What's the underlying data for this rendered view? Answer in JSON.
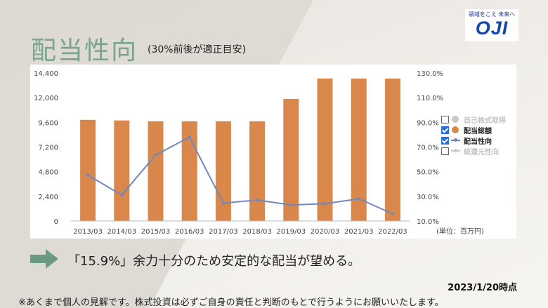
{
  "header": {
    "title": "配当性向",
    "subtitle": "(30%前後が適正目安)"
  },
  "logo": {
    "tagline": "領域をこえ 未来へ",
    "text": "OJI"
  },
  "chart_data": {
    "type": "bar",
    "categories": [
      "2013/03",
      "2014/03",
      "2015/03",
      "2016/03",
      "2017/03",
      "2018/03",
      "2019/03",
      "2020/03",
      "2021/03",
      "2022/03"
    ],
    "series": [
      {
        "name": "配当総額",
        "type": "bar",
        "axis": "left",
        "color": "#d9874a",
        "values": [
          9840,
          9780,
          9700,
          9700,
          9700,
          9700,
          11880,
          13860,
          13860,
          13860
        ]
      },
      {
        "name": "配当性向",
        "type": "line",
        "axis": "right",
        "color": "#7088c0",
        "values": [
          47.2,
          31.0,
          63.5,
          78.0,
          24.5,
          27.0,
          23.0,
          24.0,
          28.0,
          15.9
        ]
      }
    ],
    "left_axis": {
      "ticks": [
        "14,400",
        "12,000",
        "9,600",
        "7,200",
        "4,800",
        "2,400",
        "0"
      ],
      "ylim": [
        0,
        14400
      ]
    },
    "right_axis": {
      "ticks": [
        "130.0%",
        "110.0%",
        "90.0%",
        "70.0%",
        "50.0%",
        "30.0%",
        "10.0%"
      ],
      "ylim": [
        10,
        130
      ]
    },
    "unit_label": "(単位：百万円)",
    "legend": [
      {
        "label": "自己株式取得",
        "checked": false,
        "marker": "dot",
        "color": "#c8c8c8",
        "text_color": "#c4c4c4"
      },
      {
        "label": "配当総額",
        "checked": true,
        "marker": "dot",
        "color": "#d9874a",
        "text_color": "#222222"
      },
      {
        "label": "配当性向",
        "checked": true,
        "marker": "line",
        "color": "#7088c0",
        "text_color": "#222222"
      },
      {
        "label": "総還元性向",
        "checked": false,
        "marker": "line",
        "color": "#c8c8c8",
        "text_color": "#c4c4c4"
      }
    ],
    "legend_placement": "right",
    "grid": false
  },
  "message": "「15.9%」余力十分のため安定的な配当が望める。",
  "date": "2023/1/20時点",
  "disclaimer": "※あくまで個人の見解です。株式投資は必ずご自身の責任と判断のもとで行うようにお願いいたします。",
  "colors": {
    "title": "#7aa48c",
    "arrow": "#6a9a80"
  }
}
